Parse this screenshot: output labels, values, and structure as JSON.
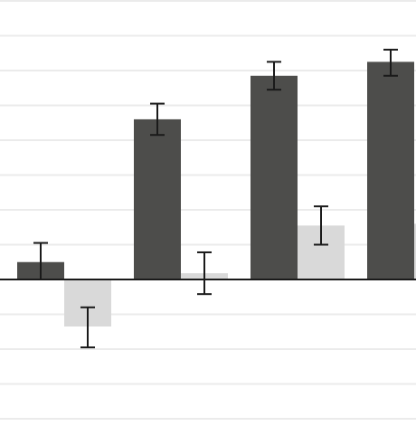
{
  "chart_data": {
    "type": "bar",
    "title": "",
    "xlabel": "",
    "ylabel": "",
    "ylim": [
      -4.1,
      8.0
    ],
    "zero_line": true,
    "grid": "horizontal",
    "gridlines": [
      8.0,
      7.0,
      6.0,
      5.0,
      4.0,
      3.0,
      2.0,
      1.0,
      -1.0,
      -2.0,
      -3.0,
      -4.0
    ],
    "categories": [
      "",
      "",
      "",
      ""
    ],
    "series": [
      {
        "values": [
          0.5,
          4.6,
          5.85,
          6.25
        ],
        "error_low": [
          0.5,
          0.45,
          0.4,
          0.4
        ],
        "error_high": [
          0.55,
          0.45,
          0.4,
          0.35
        ],
        "color": "#4d4d4b"
      },
      {
        "values": [
          -1.35,
          0.18,
          1.55,
          1.6
        ],
        "error_low": [
          0.6,
          0.6,
          0.55,
          null
        ],
        "error_high": [
          0.55,
          0.6,
          0.55,
          null
        ],
        "color": "#d9d9d9"
      }
    ],
    "colors": {
      "grid": "#ebebeb",
      "axis": "#1a1a1a",
      "error_bar": "#1a1a1a"
    }
  }
}
